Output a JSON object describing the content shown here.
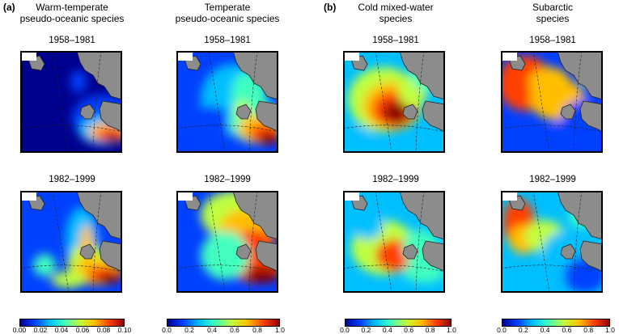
{
  "panel_labels": [
    "(a)",
    "(b)"
  ],
  "columns": [
    {
      "title_line1": "Warm-temperate",
      "title_line2": "pseudo-oceanic species",
      "periods": [
        "1958–1981",
        "1982–1999"
      ],
      "colorbar_ticks": [
        "0.00",
        "0.02",
        "0.04",
        "0.06",
        "0.08",
        "0.10"
      ],
      "colorbar_range": [
        0.0,
        0.1
      ]
    },
    {
      "title_line1": "Temperate",
      "title_line2": "pseudo-oceanic species",
      "periods": [
        "1958–1981",
        "1982–1999"
      ],
      "colorbar_ticks": [
        "0.0",
        "0.2",
        "0.4",
        "0.6",
        "0.8",
        "1.0"
      ],
      "colorbar_range": [
        0.0,
        1.0
      ]
    },
    {
      "title_line1": "Cold mixed-water",
      "title_line2": "species",
      "periods": [
        "1958–1981",
        "1982–1999"
      ],
      "colorbar_ticks": [
        "0.0",
        "0.2",
        "0.4",
        "0.6",
        "0.8",
        "1.0"
      ],
      "colorbar_range": [
        0.0,
        1.0
      ]
    },
    {
      "title_line1": "Subarctic",
      "title_line2": "species",
      "periods": [
        "1958–1981",
        "1982–1999"
      ],
      "colorbar_ticks": [
        "0.0",
        "0.2",
        "0.4",
        "0.6",
        "0.8",
        "1.0"
      ],
      "colorbar_range": [
        0.0,
        1.0
      ]
    }
  ],
  "colors": {
    "land": "#8c8c8c",
    "colormap": [
      "#00008f",
      "#0040ff",
      "#00bfff",
      "#40ffbf",
      "#bfff40",
      "#ffbf00",
      "#ff4000",
      "#8f0000"
    ]
  }
}
